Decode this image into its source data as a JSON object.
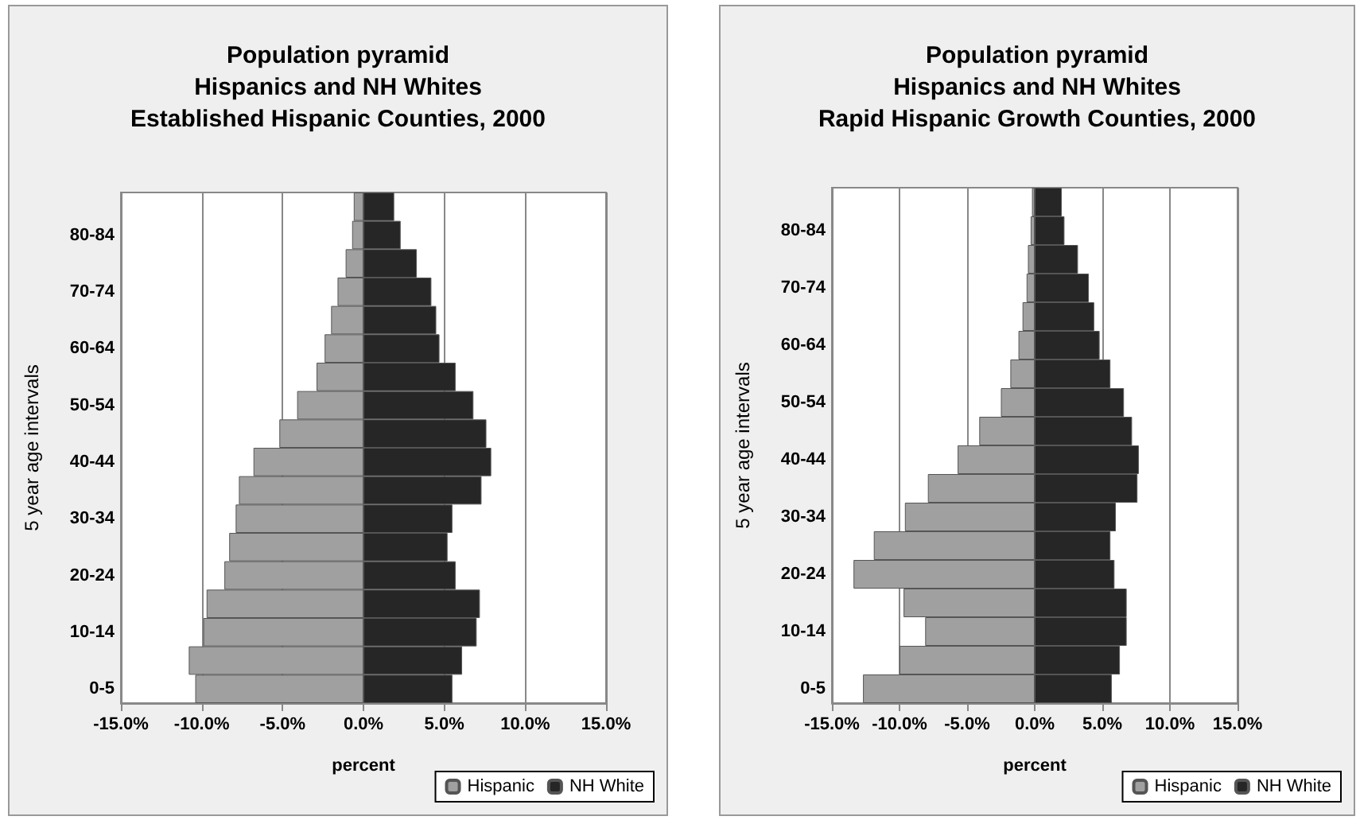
{
  "chart_data": [
    {
      "type": "bar",
      "title": "Population pyramid\nHispanics and NH Whites\nEstablished Hispanic Counties, 2000",
      "xlabel": "percent",
      "ylabel": "5 year age intervals",
      "orientation": "horizontal",
      "stacked": true,
      "categories": [
        null,
        "80-84",
        null,
        "70-74",
        null,
        "60-64",
        null,
        "50-54",
        null,
        "40-44",
        null,
        "30-34",
        null,
        "20-24",
        null,
        "10-14",
        null,
        "0-5"
      ],
      "series": [
        {
          "name": "Hispanic",
          "color": "#a0a0a0",
          "values": [
            -0.6,
            -0.7,
            -1.1,
            -1.6,
            -2.0,
            -2.4,
            -2.9,
            -4.1,
            -5.2,
            -6.8,
            -7.7,
            -7.9,
            -8.3,
            -8.6,
            -9.7,
            -9.9,
            -10.8,
            -10.4
          ]
        },
        {
          "name": "NH White",
          "color": "#262626",
          "values": [
            1.9,
            2.3,
            3.3,
            4.2,
            4.5,
            4.7,
            5.7,
            6.8,
            7.6,
            7.9,
            7.3,
            5.5,
            5.2,
            5.7,
            7.2,
            7.0,
            6.1,
            5.5
          ]
        }
      ],
      "xlim": [
        -15,
        15
      ],
      "xticks": [
        {
          "value": -15,
          "label": "-15.0%"
        },
        {
          "value": -10,
          "label": "-10.0%"
        },
        {
          "value": -5,
          "label": "-5.0%"
        },
        {
          "value": 0,
          "label": "0.0%"
        },
        {
          "value": 5,
          "label": "5.0%"
        },
        {
          "value": 10,
          "label": "10.0%"
        },
        {
          "value": 15,
          "label": "15.0%"
        }
      ],
      "grid": "x",
      "legend": "bottom right"
    },
    {
      "type": "bar",
      "title": "Population pyramid\nHispanics and NH Whites\nRapid Hispanic Growth Counties, 2000",
      "xlabel": "percent",
      "ylabel": "5 year age intervals",
      "orientation": "horizontal",
      "stacked": true,
      "categories": [
        null,
        "80-84",
        null,
        "70-74",
        null,
        "60-64",
        null,
        "50-54",
        null,
        "40-44",
        null,
        "30-34",
        null,
        "20-24",
        null,
        "10-14",
        null,
        "0-5"
      ],
      "series": [
        {
          "name": "Hispanic",
          "color": "#a0a0a0",
          "values": [
            -0.2,
            -0.3,
            -0.5,
            -0.6,
            -0.9,
            -1.2,
            -1.8,
            -2.5,
            -4.1,
            -5.7,
            -7.9,
            -9.6,
            -11.9,
            -13.4,
            -9.7,
            -8.1,
            -10.0,
            -12.7
          ]
        },
        {
          "name": "NH White",
          "color": "#262626",
          "values": [
            2.0,
            2.2,
            3.2,
            4.0,
            4.4,
            4.8,
            5.6,
            6.6,
            7.2,
            7.7,
            7.6,
            6.0,
            5.6,
            5.9,
            6.8,
            6.8,
            6.3,
            5.7
          ]
        }
      ],
      "xlim": [
        -15,
        15
      ],
      "xticks": [
        {
          "value": -15,
          "label": "-15.0%"
        },
        {
          "value": -10,
          "label": "-10.0%"
        },
        {
          "value": -5,
          "label": "-5.0%"
        },
        {
          "value": 0,
          "label": "0.0%"
        },
        {
          "value": 5,
          "label": "5.0%"
        },
        {
          "value": 10,
          "label": "10.0%"
        },
        {
          "value": 15,
          "label": "15.0%"
        }
      ],
      "grid": "x",
      "legend": "bottom right"
    }
  ]
}
